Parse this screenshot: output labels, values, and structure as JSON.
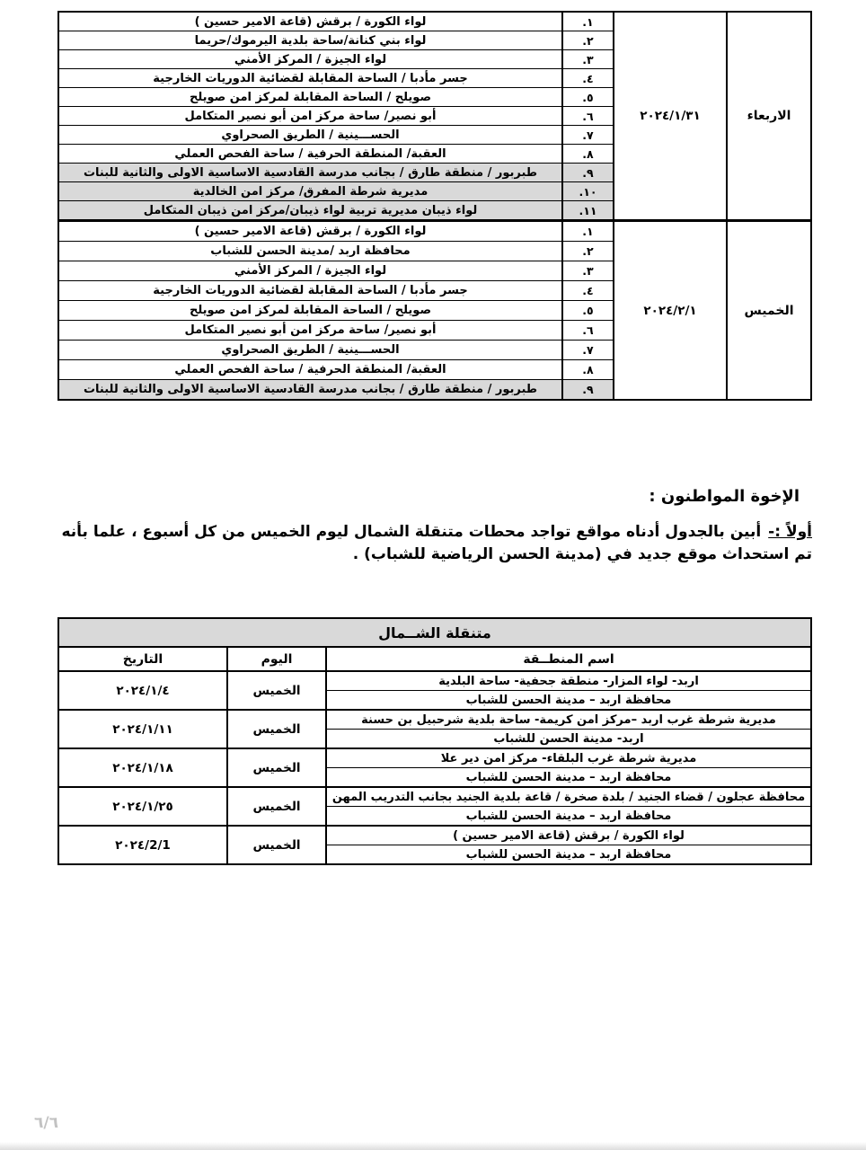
{
  "colors": {
    "shading": "#d9d9d9",
    "border": "#000000",
    "text": "#000000",
    "page_number": "#c2c2c2"
  },
  "schedule_table": {
    "sections": [
      {
        "day": "الاربعاء",
        "date": "٢٠٢٤/١/٣١",
        "rows": [
          {
            "num": "١.",
            "location": "لواء الكورة / برقش (قاعة الامير حسين )",
            "shaded": false
          },
          {
            "num": "٢.",
            "location": "لواء بني كنانة/ساحة بلدية اليرموك/حريما",
            "shaded": false
          },
          {
            "num": "٣.",
            "location": "لواء الجيزة / المركز الأمني",
            "shaded": false
          },
          {
            "num": "٤.",
            "location": "جسر مأدبا / الساحة المقابلة لقضائية الدوريات الخارجية",
            "shaded": false
          },
          {
            "num": "٥.",
            "location": "صويلح / الساحة المقابلة لمركز امن صويلح",
            "shaded": false
          },
          {
            "num": "٦.",
            "location": "أبو نصير/ ساحة مركز امن أبو نصير المتكامل",
            "shaded": false
          },
          {
            "num": "٧.",
            "location": "الحســـينية / الطريق الصحراوي",
            "shaded": false
          },
          {
            "num": "٨.",
            "location": "العقبة/ المنطقة الحرفية / ساحة الفحص العملي",
            "shaded": false
          },
          {
            "num": "٩.",
            "location": "طبربور / منطقة طارق / بجانب مدرسة القادسية الاساسية الاولى والثانية للبنات",
            "shaded": true
          },
          {
            "num": "١٠.",
            "location": "مديرية شرطة المفرق/ مركز امن الخالدية",
            "shaded": true
          },
          {
            "num": "١١.",
            "location": "لواء ذيبان مديرية تربية لواء ذيبان/مركز امن ذيبان المتكامل",
            "shaded": true
          }
        ]
      },
      {
        "day": "الخميس",
        "date": "٢٠٢٤/٢/١",
        "rows": [
          {
            "num": "١.",
            "location": "لواء الكورة / برقش (قاعة الامير حسين )",
            "shaded": false
          },
          {
            "num": "٢.",
            "location": "محافظة اربد /مدينة الحسن للشباب",
            "shaded": false
          },
          {
            "num": "٣.",
            "location": "لواء الجيزة / المركز الأمني",
            "shaded": false
          },
          {
            "num": "٤.",
            "location": "جسر مأدبا / الساحة المقابلة لقضائية الدوريات الخارجية",
            "shaded": false
          },
          {
            "num": "٥.",
            "location": "صويلح / الساحة المقابلة لمركز امن صويلح",
            "shaded": false
          },
          {
            "num": "٦.",
            "location": "أبو نصير/ ساحة مركز امن أبو نصير المتكامل",
            "shaded": false
          },
          {
            "num": "٧.",
            "location": "الحســـينية / الطريق الصحراوي",
            "shaded": false
          },
          {
            "num": "٨.",
            "location": "العقبة/ المنطقة الحرفية / ساحة الفحص العملي",
            "shaded": false
          },
          {
            "num": "٩.",
            "location": "طبربور / منطقة طارق / بجانب مدرسة القادسية الاساسية الاولى والثانية للبنات",
            "shaded": true
          }
        ]
      }
    ]
  },
  "notice": {
    "heading": "الإخوة المواطنون :",
    "first_label": "أولاً :-",
    "line1": "أبين بالجدول أدناه مواقع تواجد محطات متنقلة الشمال ليوم الخميس من كل أسبوع ، علما بأنه",
    "line2": "تم استحداث موقع جديد في (مدينة الحسن الرياضية للشباب) ."
  },
  "north_table": {
    "title": "متنقلة الشــمال",
    "headers": {
      "area": "اسم المنطــقة",
      "day": "اليوم",
      "date": "التاريخ"
    },
    "rows": [
      {
        "date": "٢٠٢٤/١/٤",
        "day": "الخميس",
        "area_lines": [
          "اربد- لواء المزار- منطقة جحفية- ساحة البلدية",
          "محافظة اربد – مدينة الحسن للشباب"
        ]
      },
      {
        "date": "٢٠٢٤/١/١١",
        "day": "الخميس",
        "area_lines": [
          "مديرية شرطة غرب اربد –مركز امن كريمة- ساحة بلدية شرحبيل بن حسنة",
          "اربد- مدينة الحسن للشباب"
        ]
      },
      {
        "date": "٢٠٢٤/١/١٨",
        "day": "الخميس",
        "area_lines": [
          "مديرية شرطة غرب البلقاء- مركز امن دير علا",
          "محافظة اربد – مدينة الحسن للشباب"
        ]
      },
      {
        "date": "٢٠٢٤/١/٢٥",
        "day": "الخميس",
        "area_lines": [
          "محافظة عجلون / قضاء الجنيد / بلدة صخرة / قاعة بلدية الجنيد بجانب التدريب المهن",
          "محافظة اربد – مدينة الحسن للشباب"
        ]
      },
      {
        "date": "٢٠٢٤/2/1",
        "day": "الخميس",
        "area_lines": [
          "لواء الكورة / برقش (قاعة الامير حسين )",
          "محافظة اربد – مدينة الحسن للشباب"
        ]
      }
    ]
  },
  "footer": {
    "page_number": "٦/٦"
  }
}
